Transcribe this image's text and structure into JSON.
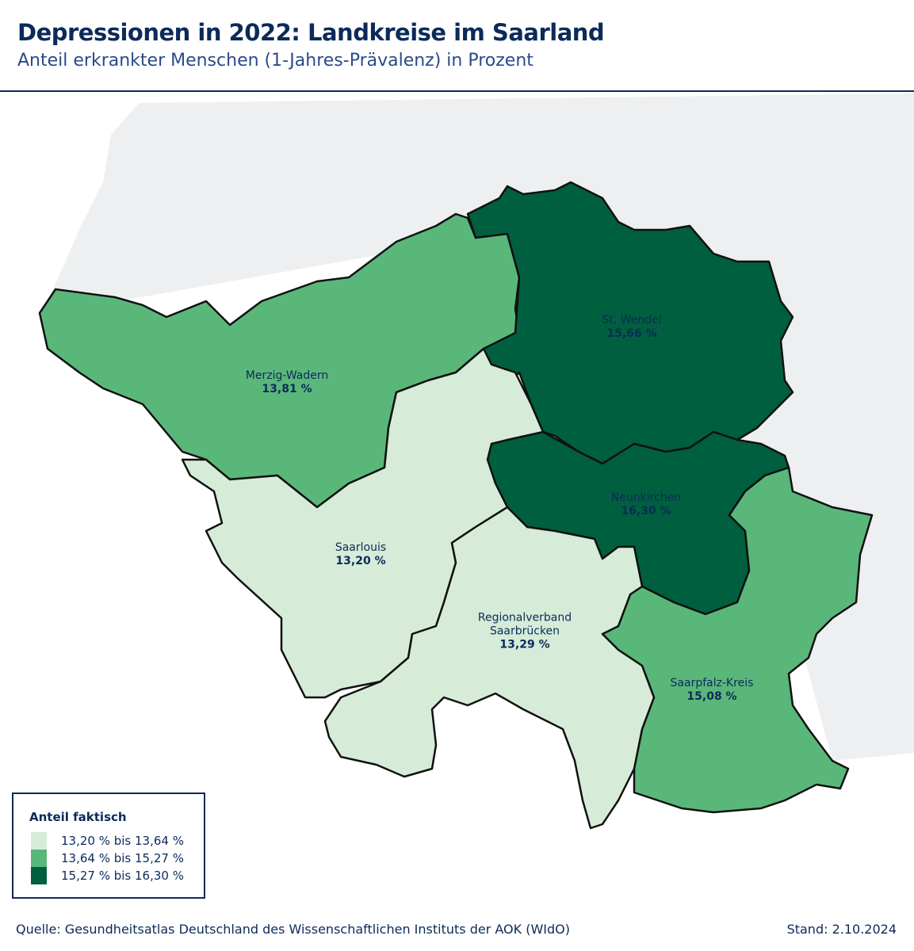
{
  "header": {
    "title": "Depressionen in 2022: Landkreise im Saarland",
    "subtitle": "Anteil erkrankter Menschen (1-Jahres-Prävalenz) in Prozent"
  },
  "regions": [
    {
      "name": "Merzig-Wadern",
      "value": "13,81 %",
      "color": "#5ab77a"
    },
    {
      "name": "St. Wendel",
      "value": "15,66 %",
      "color": "#005f3e"
    },
    {
      "name": "Neunkirchen",
      "value": "16,30 %",
      "color": "#005f3e"
    },
    {
      "name": "Saarpfalz-Kreis",
      "value": "15,08 %",
      "color": "#5ab77a"
    },
    {
      "name": "Saarlouis",
      "value": "13,20 %",
      "color": "#d6ecd8"
    },
    {
      "name": "Regionalverband\nSaarbrücken",
      "value": "13,29 %",
      "color": "#d6ecd8"
    }
  ],
  "legend": {
    "title": "Anteil faktisch",
    "classes": [
      {
        "label": "13,20 % bis 13,64 %",
        "color": "#d6ecd8"
      },
      {
        "label": "13,64 % bis 15,27 %",
        "color": "#5ab77a"
      },
      {
        "label": "15,27 % bis 16,30 %",
        "color": "#005f3e"
      }
    ]
  },
  "footer": {
    "source": "Quelle: Gesundheitsatlas Deutschland des Wissenschaftlichen Instituts der AOK (WIdO)",
    "date": "Stand: 2.10.2024"
  }
}
